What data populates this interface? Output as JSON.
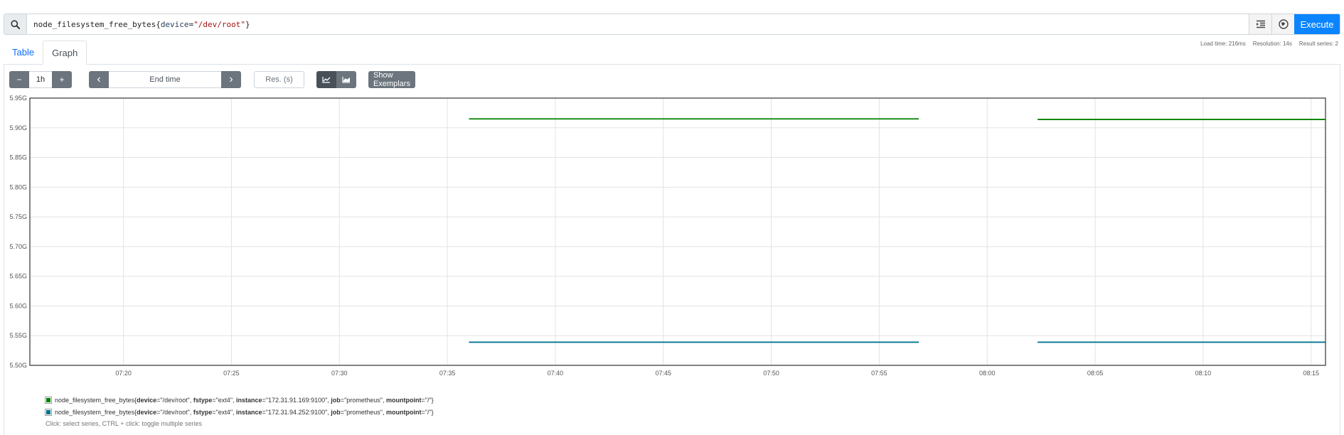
{
  "query": {
    "metric": "node_filesystem_free_bytes",
    "open": "{",
    "label_name": "device",
    "eq": "=",
    "label_value": "\"/dev/root\"",
    "close": "}",
    "execute_label": "Execute"
  },
  "tabs": {
    "table": "Table",
    "graph": "Graph"
  },
  "stats": {
    "load_time": "Load time: 216ms",
    "resolution": "Resolution: 14s",
    "result_series": "Result series: 2"
  },
  "controls": {
    "minus": "−",
    "range": "1h",
    "plus": "+",
    "prev": "‹",
    "end_time_placeholder": "End time",
    "next": "›",
    "res_placeholder": "Res. (s)",
    "show_exemplars": "Show Exemplars"
  },
  "chart_data": {
    "type": "line",
    "y_ticks": [
      "5.95G",
      "5.90G",
      "5.85G",
      "5.80G",
      "5.75G",
      "5.70G",
      "5.65G",
      "5.60G",
      "5.55G",
      "5.50G"
    ],
    "ylim": [
      5.5,
      5.95
    ],
    "x_ticks": [
      "07:20",
      "07:25",
      "07:30",
      "07:35",
      "07:40",
      "07:45",
      "07:50",
      "07:55",
      "08:00",
      "08:05",
      "08:10",
      "08:15"
    ],
    "xlim": [
      "07:15:40",
      "08:15:40"
    ],
    "grid": true,
    "series": [
      {
        "color": "#008000",
        "segments": [
          {
            "x": [
              "07:36:00",
              "07:56:50"
            ],
            "y": 5.915
          },
          {
            "x": [
              "08:02:20",
              "08:15:40"
            ],
            "y": 5.914
          }
        ]
      },
      {
        "color": "#00758c",
        "segments": [
          {
            "x": [
              "07:36:00",
              "07:56:50"
            ],
            "y": 5.539
          },
          {
            "x": [
              "08:02:20",
              "08:15:40"
            ],
            "y": 5.539
          }
        ]
      }
    ]
  },
  "legend": {
    "items": [
      {
        "color": "#008000",
        "metric": "node_filesystem_free_bytes",
        "device": "\"/dev/root\"",
        "fstype": "\"ext4\"",
        "instance": "\"172.31.91.169:9100\"",
        "job": "\"prometheus\"",
        "mountpoint": "\"/\""
      },
      {
        "color": "#00758c",
        "metric": "node_filesystem_free_bytes",
        "device": "\"/dev/root\"",
        "fstype": "\"ext4\"",
        "instance": "\"172.31.94.252:9100\"",
        "job": "\"prometheus\"",
        "mountpoint": "\"/\""
      }
    ],
    "hint": "Click: select series, CTRL + click: toggle multiple series"
  }
}
